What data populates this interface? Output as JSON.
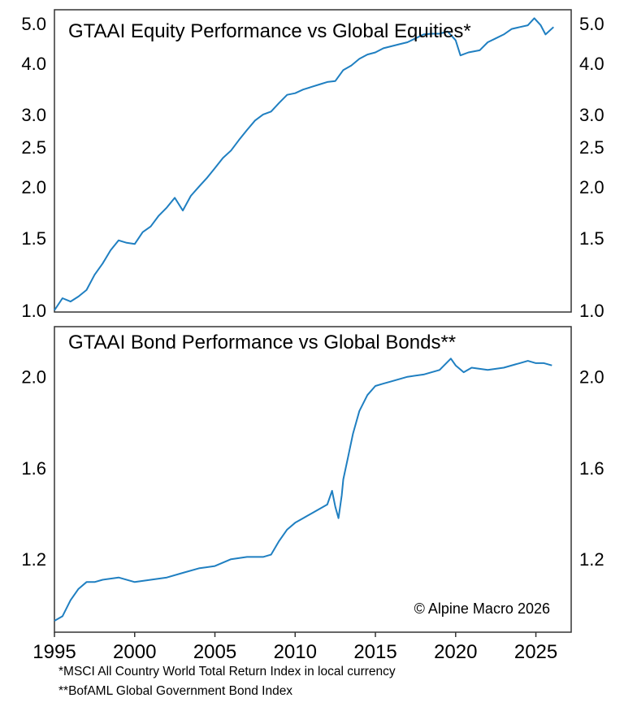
{
  "chart_data": [
    {
      "type": "line",
      "title": "GTAAI Equity Performance vs Global Equities*",
      "xlabel": "",
      "ylabel": "",
      "y_scale": "log",
      "ylim": [
        0.99,
        5.4
      ],
      "y_ticks": [
        "1.0",
        "1.5",
        "2.0",
        "2.5",
        "3.0",
        "4.0",
        "5.0"
      ],
      "y_axis_both_sides": true,
      "grid": false,
      "series": [
        {
          "color": "#1f7fc1",
          "x": [
            1995.0,
            1995.5,
            1996.0,
            1996.5,
            1997.0,
            1997.5,
            1998.0,
            1998.5,
            1999.0,
            1999.5,
            2000.0,
            2000.5,
            2001.0,
            2001.5,
            2002.0,
            2002.5,
            2003.0,
            2003.5,
            2004.0,
            2004.5,
            2005.0,
            2005.5,
            2006.0,
            2006.5,
            2007.0,
            2007.5,
            2008.0,
            2008.5,
            2009.0,
            2009.5,
            2010.0,
            2010.5,
            2011.0,
            2011.5,
            2012.0,
            2012.5,
            2013.0,
            2013.5,
            2014.0,
            2014.5,
            2015.0,
            2015.5,
            2016.0,
            2016.5,
            2017.0,
            2017.5,
            2018.0,
            2018.5,
            2019.0,
            2019.5,
            2020.0,
            2020.3,
            2020.8,
            2021.5,
            2022.0,
            2022.5,
            2023.0,
            2023.5,
            2024.0,
            2024.5,
            2024.9,
            2025.3,
            2025.6,
            2026.1
          ],
          "values": [
            1.0,
            1.07,
            1.05,
            1.08,
            1.12,
            1.22,
            1.3,
            1.4,
            1.48,
            1.46,
            1.45,
            1.55,
            1.6,
            1.7,
            1.78,
            1.88,
            1.75,
            1.9,
            2.0,
            2.1,
            2.22,
            2.35,
            2.45,
            2.6,
            2.75,
            2.9,
            3.0,
            3.05,
            3.2,
            3.35,
            3.38,
            3.45,
            3.5,
            3.55,
            3.6,
            3.62,
            3.85,
            3.95,
            4.1,
            4.2,
            4.25,
            4.35,
            4.4,
            4.45,
            4.5,
            4.6,
            4.7,
            4.72,
            4.72,
            4.78,
            4.55,
            4.18,
            4.25,
            4.3,
            4.5,
            4.6,
            4.7,
            4.85,
            4.9,
            4.95,
            5.15,
            4.95,
            4.7,
            4.9
          ]
        }
      ]
    },
    {
      "type": "line",
      "title": "GTAAI Bond Performance vs Global Bonds**",
      "xlabel": "",
      "ylabel": "",
      "ylim": [
        0.88,
        2.22
      ],
      "y_ticks": [
        "1.2",
        "1.6",
        "2.0"
      ],
      "y_axis_both_sides": true,
      "grid": false,
      "x_ticks": [
        "1995",
        "2000",
        "2005",
        "2010",
        "2015",
        "2020",
        "2025"
      ],
      "xlim": [
        1995.0,
        2027.2
      ],
      "series": [
        {
          "color": "#1f7fc1",
          "x": [
            1995.0,
            1995.5,
            1996.0,
            1996.5,
            1997.0,
            1997.5,
            1998.0,
            1999.0,
            2000.0,
            2001.0,
            2002.0,
            2003.0,
            2004.0,
            2005.0,
            2006.0,
            2007.0,
            2008.0,
            2008.5,
            2009.0,
            2009.5,
            2010.0,
            2010.5,
            2011.0,
            2011.5,
            2012.0,
            2012.3,
            2012.5,
            2012.7,
            2012.9,
            2013.0,
            2013.3,
            2013.6,
            2014.0,
            2014.5,
            2015.0,
            2015.5,
            2016.0,
            2017.0,
            2018.0,
            2019.0,
            2019.7,
            2020.0,
            2020.5,
            2021.0,
            2022.0,
            2023.0,
            2024.0,
            2024.5,
            2025.0,
            2025.5,
            2026.0
          ],
          "values": [
            0.93,
            0.95,
            1.02,
            1.07,
            1.1,
            1.1,
            1.11,
            1.12,
            1.1,
            1.11,
            1.12,
            1.14,
            1.16,
            1.17,
            1.2,
            1.21,
            1.21,
            1.22,
            1.28,
            1.33,
            1.36,
            1.38,
            1.4,
            1.42,
            1.44,
            1.5,
            1.43,
            1.38,
            1.48,
            1.55,
            1.65,
            1.75,
            1.85,
            1.92,
            1.96,
            1.97,
            1.98,
            2.0,
            2.01,
            2.03,
            2.08,
            2.05,
            2.02,
            2.04,
            2.03,
            2.04,
            2.06,
            2.07,
            2.06,
            2.06,
            2.05
          ]
        }
      ]
    }
  ],
  "credit": "© Alpine Macro 2026",
  "footnotes": [
    "*MSCI All Country World Total Return Index in local currency",
    "**BofAML Global Government Bond Index"
  ]
}
